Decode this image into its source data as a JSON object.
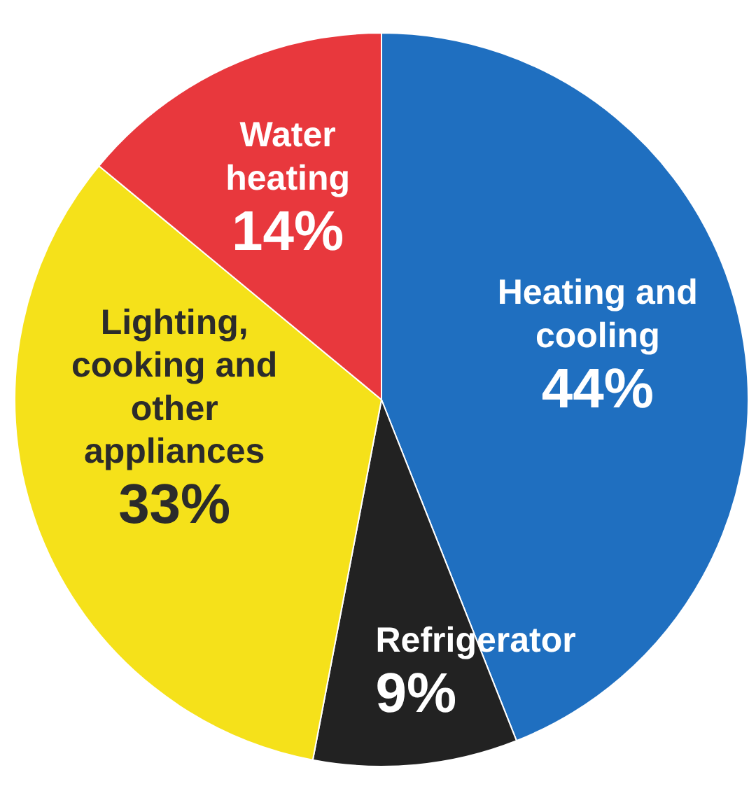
{
  "chart_data": {
    "type": "pie",
    "categories": [
      "Heating and cooling",
      "Refrigerator",
      "Lighting, cooking and other appliances",
      "Water heating"
    ],
    "values": [
      44,
      9,
      33,
      14
    ],
    "value_labels": [
      "44%",
      "9%",
      "33%",
      "14%"
    ],
    "colors": [
      "#1f6fc0",
      "#222222",
      "#f5e11a",
      "#e8383d"
    ]
  }
}
